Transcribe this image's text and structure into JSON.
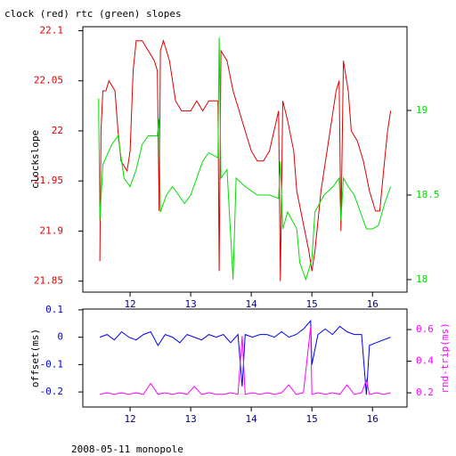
{
  "chart_data": [
    {
      "type": "line",
      "title": "clock (red) rtc (green) slopes",
      "y_label": "clockslope",
      "xlim": [
        11.22,
        16.57
      ],
      "xticks": [
        12,
        13,
        14,
        15,
        16
      ],
      "ylim": [
        21.839,
        22.104
      ],
      "yticks": [
        21.85,
        21.9,
        21.95,
        22,
        22.05,
        22.1
      ],
      "y2lim": [
        17.926,
        19.495
      ],
      "y2ticks": [
        18,
        18.5,
        19
      ],
      "series": [
        {
          "color": "#dd0000",
          "axis": "y",
          "x": [
            11.5,
            11.52,
            11.55,
            11.6,
            11.65,
            11.75,
            11.8,
            11.85,
            11.95,
            12.0,
            12.05,
            12.1,
            12.2,
            12.3,
            12.4,
            12.45,
            12.48,
            12.5,
            12.55,
            12.65,
            12.75,
            12.85,
            13.0,
            13.1,
            13.2,
            13.3,
            13.45,
            13.47,
            13.5,
            13.6,
            13.7,
            13.8,
            13.9,
            14.0,
            14.1,
            14.2,
            14.3,
            14.45,
            14.48,
            14.52,
            14.6,
            14.7,
            14.75,
            14.85,
            14.95,
            15.0,
            15.05,
            15.15,
            15.3,
            15.4,
            15.45,
            15.48,
            15.52,
            15.6,
            15.65,
            15.75,
            15.85,
            15.95,
            16.05,
            16.12,
            16.2,
            16.25,
            16.3
          ],
          "values": [
            21.87,
            22.0,
            22.04,
            22.04,
            22.05,
            22.04,
            22.0,
            21.97,
            21.96,
            21.98,
            22.06,
            22.09,
            22.09,
            22.08,
            22.07,
            22.06,
            21.92,
            22.08,
            22.09,
            22.07,
            22.03,
            22.02,
            22.02,
            22.03,
            22.02,
            22.03,
            22.03,
            21.86,
            22.08,
            22.07,
            22.04,
            22.02,
            22.0,
            21.98,
            21.97,
            21.97,
            21.98,
            22.02,
            21.85,
            22.03,
            22.01,
            21.98,
            21.94,
            21.91,
            21.88,
            21.86,
            21.88,
            21.94,
            22.0,
            22.04,
            22.05,
            21.9,
            22.07,
            22.04,
            22.0,
            21.99,
            21.97,
            21.94,
            21.92,
            21.92,
            21.97,
            22.0,
            22.02
          ]
        },
        {
          "color": "#00dd00",
          "axis": "y2",
          "x": [
            11.48,
            11.5,
            11.55,
            11.6,
            11.7,
            11.8,
            11.9,
            12.0,
            12.1,
            12.2,
            12.3,
            12.45,
            12.48,
            12.5,
            12.6,
            12.7,
            12.8,
            12.9,
            13.0,
            13.1,
            13.2,
            13.3,
            13.45,
            13.47,
            13.5,
            13.6,
            13.7,
            13.75,
            13.9,
            14.1,
            14.3,
            14.45,
            14.48,
            14.52,
            14.6,
            14.75,
            14.8,
            14.9,
            15.0,
            15.05,
            15.2,
            15.35,
            15.45,
            15.48,
            15.52,
            15.6,
            15.7,
            15.8,
            15.9,
            16.0,
            16.1,
            16.2,
            16.3
          ],
          "values": [
            19.07,
            18.35,
            18.68,
            18.72,
            18.8,
            18.85,
            18.6,
            18.55,
            18.65,
            18.8,
            18.85,
            18.85,
            18.95,
            18.4,
            18.5,
            18.55,
            18.5,
            18.45,
            18.5,
            18.6,
            18.7,
            18.75,
            18.72,
            19.43,
            18.6,
            18.65,
            18.0,
            18.6,
            18.55,
            18.5,
            18.5,
            18.48,
            18.7,
            18.3,
            18.4,
            18.3,
            18.1,
            18.0,
            18.12,
            18.4,
            18.5,
            18.55,
            18.6,
            18.35,
            18.6,
            18.55,
            18.5,
            18.4,
            18.3,
            18.3,
            18.32,
            18.45,
            18.55
          ]
        }
      ]
    },
    {
      "type": "line",
      "y_label": "offset(ms)",
      "y2_label": "rnd-trip(ms)",
      "xlim": [
        11.22,
        16.57
      ],
      "xticks": [
        12,
        13,
        14,
        15,
        16
      ],
      "ylim": [
        -0.255,
        0.103
      ],
      "yticks": [
        -0.2,
        -0.1,
        0,
        0.1
      ],
      "y2lim": [
        0.11,
        0.73
      ],
      "y2ticks": [
        0.2,
        0.4,
        0.6
      ],
      "x": [
        11.5,
        11.62,
        11.74,
        11.86,
        11.98,
        12.1,
        12.22,
        12.34,
        12.46,
        12.58,
        12.7,
        12.82,
        12.94,
        13.06,
        13.18,
        13.3,
        13.42,
        13.54,
        13.66,
        13.78,
        13.85,
        13.9,
        14.02,
        14.14,
        14.26,
        14.38,
        14.5,
        14.62,
        14.74,
        14.86,
        14.98,
        15.0,
        15.1,
        15.22,
        15.34,
        15.46,
        15.58,
        15.7,
        15.82,
        15.9,
        15.95,
        16.06,
        16.18,
        16.3
      ],
      "series": [
        {
          "color": "#0000ee",
          "axis": "y",
          "values": [
            0,
            0.01,
            -0.01,
            0.02,
            0,
            -0.01,
            0.01,
            0.02,
            -0.03,
            0.01,
            0,
            -0.02,
            0.01,
            0,
            -0.01,
            0.01,
            0,
            0.01,
            -0.02,
            0.01,
            -0.18,
            0.01,
            0,
            0.01,
            0.01,
            0,
            0.02,
            0,
            0.01,
            0.03,
            0.06,
            -0.1,
            0.01,
            0.03,
            0.01,
            0.04,
            0.02,
            0.01,
            0.01,
            -0.21,
            -0.03,
            -0.02,
            -0.01,
            0
          ]
        },
        {
          "color": "#ff00ff",
          "axis": "y2",
          "values": [
            0.19,
            0.2,
            0.19,
            0.2,
            0.19,
            0.2,
            0.19,
            0.26,
            0.19,
            0.2,
            0.19,
            0.2,
            0.19,
            0.24,
            0.19,
            0.2,
            0.19,
            0.19,
            0.2,
            0.19,
            0.56,
            0.19,
            0.2,
            0.19,
            0.2,
            0.19,
            0.2,
            0.25,
            0.19,
            0.2,
            0.62,
            0.19,
            0.2,
            0.19,
            0.2,
            0.19,
            0.25,
            0.19,
            0.2,
            0.28,
            0.19,
            0.2,
            0.19,
            0.2
          ]
        }
      ]
    }
  ],
  "footer": "2008-05-11 monopole"
}
